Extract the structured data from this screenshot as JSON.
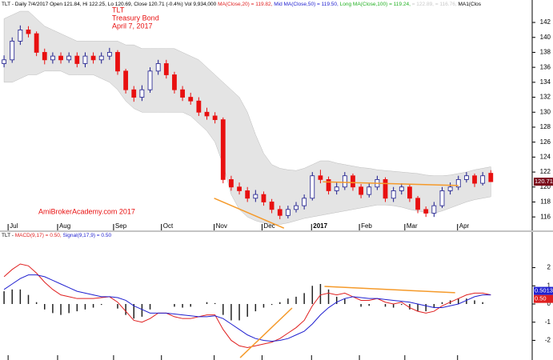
{
  "chart_data": {
    "type": "stock",
    "header": [
      {
        "text": "TLT - Daily 7/4/2017 Open 121.84, Hi 122.25, Lo 120.69, Close 120.71 (-0.4%) Vol 9,934,000 ",
        "color": "#000000"
      },
      {
        "text": "MA(Close,20) = 119.82, ",
        "color": "#e02020"
      },
      {
        "text": "Mid MA(Close,50) = 119.50, ",
        "color": "#2020d0"
      },
      {
        "text": "Long MA(Close,100) = 119.24, ",
        "color": "#20b020"
      },
      {
        "text": "= 122.89, ",
        "color": "#c8c8c8"
      },
      {
        "text": "= 116.76, ",
        "color": "#c8c8c8"
      },
      {
        "text": "MA1(Clos",
        "color": "#000000"
      }
    ],
    "notes": [
      "TLT",
      "Treasury Bond",
      "April 7, 2017"
    ],
    "watermark": "AmiBrokerAcademy.com  2017",
    "xlim": [
      -0.5,
      65.1
    ],
    "xticks": [
      {
        "value": 0.5,
        "label": "Jul"
      },
      {
        "value": 6.6,
        "label": "Aug"
      },
      {
        "value": 13.5,
        "label": "Sep"
      },
      {
        "value": 19.4,
        "label": "Oct"
      },
      {
        "value": 25.9,
        "label": "Nov"
      },
      {
        "value": 31.8,
        "label": "Dec"
      },
      {
        "value": 37.9,
        "label": "2017"
      },
      {
        "value": 43.8,
        "label": "Feb"
      },
      {
        "value": 49.4,
        "label": "Mar"
      },
      {
        "value": 55.9,
        "label": "Apr"
      }
    ],
    "ylim": [
      114.2,
      145
    ],
    "yticks": [
      116,
      118,
      120,
      122,
      124,
      126,
      128,
      130,
      132,
      134,
      136,
      138,
      140,
      142
    ],
    "up_color": "#1a1a8c",
    "down_color": "#e81010",
    "open": [
      136.5,
      137,
      139.5,
      141,
      140.5,
      138,
      137,
      137.5,
      137,
      137.5,
      136.5,
      137.5,
      137,
      137.5,
      138,
      135.5,
      133,
      132,
      133,
      135.5,
      136.5,
      135,
      133,
      132,
      131.5,
      130,
      129.5,
      129,
      121,
      120,
      119.5,
      118.5,
      119,
      118,
      117,
      116.2,
      117,
      117.5,
      118.5,
      121.5,
      121,
      119.5,
      120,
      121.5,
      120,
      119,
      120,
      121,
      118.5,
      119.5,
      120,
      118.5,
      117,
      116.5,
      117.5,
      119.5,
      120,
      121,
      121.5,
      120.5,
      121.84
    ],
    "high": [
      137.6,
      140,
      141.6,
      141.5,
      140.8,
      138.5,
      138,
      138,
      138,
      138,
      138,
      138,
      138,
      138.6,
      138.3,
      135.8,
      133.5,
      133.6,
      136,
      137,
      137,
      135.4,
      133.5,
      132.6,
      132,
      130.6,
      130,
      129.3,
      121.5,
      120.6,
      120,
      119.6,
      119.4,
      118.4,
      117.5,
      117.5,
      118,
      119,
      122,
      122.3,
      121.4,
      120.6,
      122,
      121.8,
      120.4,
      120.5,
      121.5,
      121.3,
      120,
      120.5,
      120.3,
      118.8,
      117.4,
      118,
      120,
      120.6,
      121.5,
      122,
      121.8,
      122,
      122.25
    ],
    "low": [
      136,
      136.6,
      139,
      140,
      137.5,
      136.4,
      136.5,
      136.5,
      136.6,
      136,
      136,
      136.5,
      136.5,
      137,
      135,
      132.5,
      131.4,
      131.5,
      132.6,
      135,
      134.5,
      132.5,
      131.5,
      131,
      129.5,
      129,
      128.5,
      120.5,
      119.5,
      119,
      118,
      118,
      117.5,
      116.5,
      115.7,
      115.8,
      116.6,
      117,
      118.2,
      120.5,
      119,
      119,
      119.6,
      119.5,
      118.5,
      118.6,
      119.6,
      118,
      118,
      119,
      118,
      116.5,
      116,
      116,
      117.2,
      119,
      119.6,
      120.6,
      120,
      120.2,
      120.69
    ],
    "close": [
      137,
      139.5,
      141,
      140.5,
      138,
      137,
      137.5,
      137,
      137.5,
      136.5,
      137.5,
      137,
      137.5,
      138,
      135.5,
      133,
      132,
      133,
      135.5,
      136.5,
      135,
      133,
      132,
      131.5,
      130,
      129.5,
      129,
      121,
      120,
      119.5,
      118.5,
      119,
      118,
      117,
      116.2,
      117,
      117.5,
      118.5,
      121.5,
      121,
      119.5,
      120,
      121.5,
      120,
      119,
      120,
      121,
      118.5,
      119.5,
      120,
      118.5,
      117,
      116.5,
      117.5,
      119.5,
      120,
      121,
      121.5,
      120.5,
      121.5,
      120.71
    ],
    "band_color": "#e4e4e4",
    "band_upper": [
      142.5,
      143,
      143.5,
      143.5,
      142.5,
      141.5,
      141,
      140.5,
      140,
      139.5,
      139.5,
      139.5,
      139.5,
      139.5,
      139.5,
      139,
      139,
      138.5,
      138.5,
      138.5,
      138.5,
      138.5,
      138,
      137.5,
      137,
      136,
      135,
      134,
      133,
      132,
      130,
      127,
      124.5,
      123,
      122.5,
      122.3,
      122.2,
      122.5,
      123,
      123.5,
      123.5,
      123.2,
      123,
      122.8,
      122.6,
      122.5,
      122.3,
      122.2,
      122.1,
      122,
      121.9,
      121.8,
      121.6,
      121.5,
      121.5,
      121.6,
      121.8,
      122,
      122.3,
      122.5,
      122.7
    ],
    "band_lower": [
      134,
      134,
      134.5,
      135,
      135,
      135.5,
      135.5,
      135.5,
      135,
      135,
      135,
      135,
      134.5,
      134,
      133,
      131.5,
      130.5,
      130,
      130,
      130,
      130,
      130,
      130,
      129.5,
      128.5,
      127.5,
      126,
      123,
      119,
      117,
      116,
      115.5,
      115.2,
      115,
      115,
      115.2,
      115.5,
      115.8,
      116,
      116.2,
      116.4,
      116.6,
      116.8,
      117,
      117.2,
      117.4,
      117.6,
      117.6,
      117.5,
      117.3,
      117,
      116.8,
      116.6,
      116.5,
      116.8,
      117.2,
      117.6,
      118,
      118.3,
      118.5,
      118.7
    ],
    "trend_color": "#f59a2a",
    "trendlines": [
      {
        "x": [
          25.9,
          34.5
        ],
        "y": [
          118.5,
          114.5
        ]
      },
      {
        "x": [
          39.3,
          56
        ],
        "y": [
          120.7,
          120.2
        ]
      }
    ],
    "last_price_color": "#7a0a1a",
    "macd": {
      "title": "TLT - ",
      "parts": [
        {
          "text": "MACD(9,17) = 0.50, ",
          "color": "#e02020"
        },
        {
          "text": "Signal(9,17,9) = 0.50",
          "color": "#2020d0"
        }
      ],
      "ylim": [
        -3.08,
        3.96
      ],
      "yticks": [
        -2,
        -1,
        0,
        1,
        2
      ],
      "series": [
        {
          "name": "MACD",
          "color": "#e02020",
          "last_label": "0.50",
          "values": [
            1.5,
            1.9,
            2.2,
            2.1,
            1.7,
            1.2,
            0.8,
            0.5,
            0.4,
            0.3,
            0.3,
            0.3,
            0.35,
            0.4,
            0.1,
            -0.4,
            -0.9,
            -1.0,
            -0.8,
            -0.5,
            -0.5,
            -0.7,
            -0.8,
            -0.8,
            -0.7,
            -0.6,
            -0.6,
            -1.4,
            -2.0,
            -2.3,
            -2.4,
            -2.3,
            -2.2,
            -2.1,
            -1.9,
            -1.6,
            -1.3,
            -0.9,
            -0.1,
            0.5,
            0.6,
            0.5,
            0.6,
            0.4,
            0.2,
            0.2,
            0.3,
            0.1,
            0.0,
            0.1,
            -0.2,
            -0.4,
            -0.5,
            -0.4,
            -0.1,
            0.1,
            0.3,
            0.5,
            0.6,
            0.6,
            0.5
          ]
        },
        {
          "name": "Signal",
          "color": "#2020d0",
          "last_label": "0.50132",
          "last_value": 0.50132,
          "values": [
            0.8,
            1.1,
            1.4,
            1.6,
            1.6,
            1.5,
            1.3,
            1.1,
            0.9,
            0.7,
            0.6,
            0.5,
            0.4,
            0.4,
            0.35,
            0.2,
            -0.1,
            -0.3,
            -0.5,
            -0.5,
            -0.5,
            -0.55,
            -0.6,
            -0.65,
            -0.7,
            -0.7,
            -0.65,
            -0.8,
            -1.1,
            -1.4,
            -1.7,
            -1.9,
            -2.0,
            -2.05,
            -2.0,
            -1.9,
            -1.7,
            -1.5,
            -1.1,
            -0.6,
            -0.2,
            0.1,
            0.3,
            0.4,
            0.35,
            0.3,
            0.3,
            0.25,
            0.2,
            0.15,
            0.1,
            0.0,
            -0.1,
            -0.2,
            -0.2,
            -0.1,
            0.0,
            0.2,
            0.4,
            0.5,
            0.50132
          ]
        }
      ],
      "histogram_color": "#222222",
      "histogram": [
        0.7,
        0.8,
        0.8,
        0.5,
        0.1,
        -0.3,
        -0.5,
        -0.6,
        -0.5,
        -0.4,
        -0.3,
        -0.2,
        -0.05,
        0,
        -0.25,
        -0.6,
        -0.8,
        -0.7,
        -0.3,
        0,
        0,
        -0.15,
        -0.2,
        -0.15,
        0,
        0.1,
        0.05,
        -0.6,
        -0.9,
        -0.9,
        -0.7,
        -0.4,
        -0.2,
        -0.05,
        0.1,
        0.3,
        0.4,
        0.6,
        1.0,
        1.1,
        0.8,
        0.4,
        0.3,
        0,
        -0.15,
        -0.1,
        0,
        -0.15,
        -0.2,
        -0.05,
        -0.3,
        -0.4,
        -0.4,
        -0.2,
        0.1,
        0.2,
        0.3,
        0.3,
        0.2,
        0.1,
        0
      ],
      "trendlines": [
        {
          "x": [
            29.1,
            35.5
          ],
          "y": [
            -2.95,
            -0.22
          ]
        },
        {
          "x": [
            39.5,
            55.6
          ],
          "y": [
            0.97,
            0.62
          ]
        }
      ]
    }
  }
}
